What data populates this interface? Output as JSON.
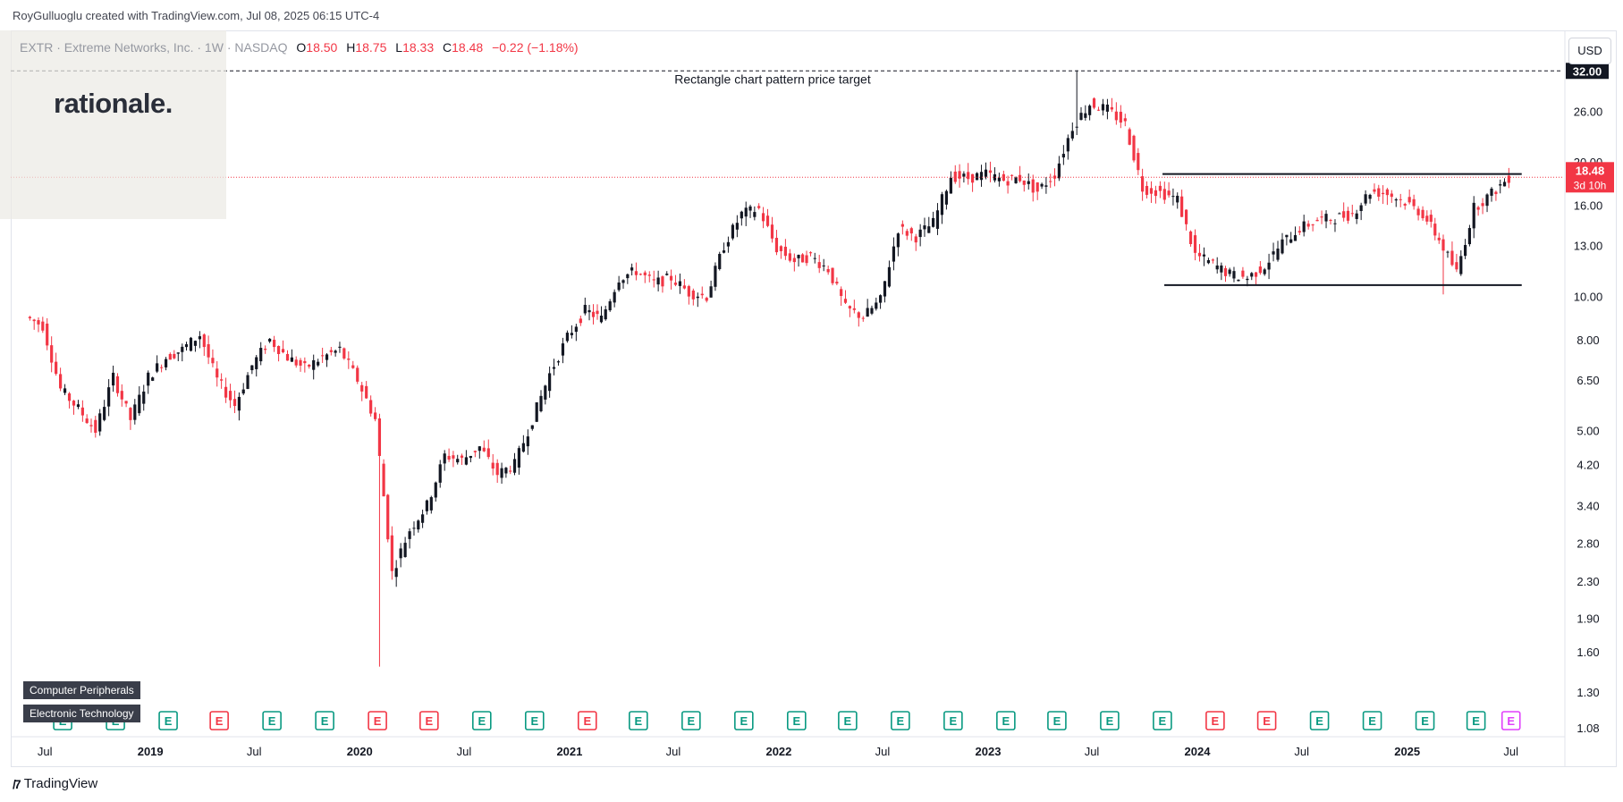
{
  "attribution": "RoyGulluoglu created with TradingView.com, Jul 08, 2025 06:15 UTC-4",
  "legend": {
    "symbol": "EXTR · Extreme Networks, Inc. · 1W · NASDAQ",
    "open_label": "O",
    "open": "18.50",
    "high_label": "H",
    "high": "18.75",
    "low_label": "L",
    "low": "18.33",
    "close_label": "C",
    "close": "18.48",
    "change": "−0.22 (−1.18%)"
  },
  "logo": "rationale.",
  "currency": "USD",
  "footer_logo": "TradingView",
  "tags": [
    "Computer Peripherals",
    "Electronic Technology"
  ],
  "colors": {
    "up": "#089981",
    "down": "#f23645",
    "candle_up": "#131722",
    "candle_down": "#f23645",
    "axis_text": "#131722",
    "grid": "#f0f3fa"
  },
  "chart_data": {
    "type": "candlestick",
    "scale": "log",
    "ylim": [
      1.08,
      38
    ],
    "y_ticks": [
      "1.08",
      "1.30",
      "1.60",
      "1.90",
      "2.30",
      "2.80",
      "3.40",
      "4.20",
      "5.00",
      "6.50",
      "8.00",
      "10.00",
      "13.00",
      "16.00",
      "20.00",
      "26.00"
    ],
    "x_ticks": [
      "Jul",
      "2019",
      "Jul",
      "2020",
      "Jul",
      "2021",
      "Jul",
      "2022",
      "Jul",
      "2023",
      "Jul",
      "2024",
      "Jul",
      "2025",
      "Jul"
    ],
    "x_tick_dates": [
      "2018-07",
      "2019-01",
      "2019-07",
      "2020-01",
      "2020-07",
      "2021-01",
      "2021-07",
      "2022-01",
      "2022-07",
      "2023-01",
      "2023-07",
      "2024-01",
      "2024-07",
      "2025-01",
      "2025-07"
    ],
    "series_close": [
      {
        "date": "2018-06",
        "close": 9.0
      },
      {
        "date": "2018-07",
        "close": 8.6
      },
      {
        "date": "2018-08",
        "close": 6.2
      },
      {
        "date": "2018-09",
        "close": 5.6
      },
      {
        "date": "2018-10",
        "close": 5.0
      },
      {
        "date": "2018-11",
        "close": 6.6
      },
      {
        "date": "2018-12",
        "close": 5.3
      },
      {
        "date": "2019-01",
        "close": 6.6
      },
      {
        "date": "2019-02",
        "close": 7.3
      },
      {
        "date": "2019-03",
        "close": 7.6
      },
      {
        "date": "2019-04",
        "close": 8.2
      },
      {
        "date": "2019-05",
        "close": 6.5
      },
      {
        "date": "2019-06",
        "close": 5.7
      },
      {
        "date": "2019-07",
        "close": 7.0
      },
      {
        "date": "2019-08",
        "close": 8.0
      },
      {
        "date": "2019-09",
        "close": 7.3
      },
      {
        "date": "2019-10",
        "close": 6.9
      },
      {
        "date": "2019-11",
        "close": 7.3
      },
      {
        "date": "2019-12",
        "close": 7.6
      },
      {
        "date": "2020-01",
        "close": 6.5
      },
      {
        "date": "2020-02",
        "close": 5.3
      },
      {
        "date": "2020-03",
        "close": 2.4
      },
      {
        "date": "2020-04",
        "close": 3.0
      },
      {
        "date": "2020-05",
        "close": 3.4
      },
      {
        "date": "2020-06",
        "close": 4.4
      },
      {
        "date": "2020-07",
        "close": 4.3
      },
      {
        "date": "2020-08",
        "close": 4.6
      },
      {
        "date": "2020-09",
        "close": 4.0
      },
      {
        "date": "2020-10",
        "close": 4.2
      },
      {
        "date": "2020-11",
        "close": 5.3
      },
      {
        "date": "2020-12",
        "close": 6.7
      },
      {
        "date": "2021-01",
        "close": 8.1
      },
      {
        "date": "2021-02",
        "close": 9.3
      },
      {
        "date": "2021-03",
        "close": 8.9
      },
      {
        "date": "2021-04",
        "close": 11.0
      },
      {
        "date": "2021-05",
        "close": 11.4
      },
      {
        "date": "2021-06",
        "close": 10.7
      },
      {
        "date": "2021-07",
        "close": 11.0
      },
      {
        "date": "2021-08",
        "close": 10.2
      },
      {
        "date": "2021-09",
        "close": 10.0
      },
      {
        "date": "2021-10",
        "close": 13.0
      },
      {
        "date": "2021-11",
        "close": 15.3
      },
      {
        "date": "2021-12",
        "close": 15.7
      },
      {
        "date": "2022-01",
        "close": 12.8
      },
      {
        "date": "2022-02",
        "close": 12.0
      },
      {
        "date": "2022-03",
        "close": 12.3
      },
      {
        "date": "2022-04",
        "close": 11.5
      },
      {
        "date": "2022-05",
        "close": 9.4
      },
      {
        "date": "2022-06",
        "close": 9.0
      },
      {
        "date": "2022-07",
        "close": 9.8
      },
      {
        "date": "2022-08",
        "close": 14.2
      },
      {
        "date": "2022-09",
        "close": 13.6
      },
      {
        "date": "2022-10",
        "close": 14.6
      },
      {
        "date": "2022-11",
        "close": 18.6
      },
      {
        "date": "2022-12",
        "close": 18.4
      },
      {
        "date": "2023-01",
        "close": 18.8
      },
      {
        "date": "2023-02",
        "close": 18.2
      },
      {
        "date": "2023-03",
        "close": 18.4
      },
      {
        "date": "2023-04",
        "close": 17.2
      },
      {
        "date": "2023-05",
        "close": 18.8
      },
      {
        "date": "2023-06",
        "close": 24.0
      },
      {
        "date": "2023-07",
        "close": 27.0
      },
      {
        "date": "2023-08",
        "close": 26.2
      },
      {
        "date": "2023-09",
        "close": 24.3
      },
      {
        "date": "2023-10",
        "close": 17.5
      },
      {
        "date": "2023-11",
        "close": 17.1
      },
      {
        "date": "2023-12",
        "close": 16.5
      },
      {
        "date": "2024-01",
        "close": 12.4
      },
      {
        "date": "2024-02",
        "close": 11.8
      },
      {
        "date": "2024-03",
        "close": 11.2
      },
      {
        "date": "2024-04",
        "close": 11.0
      },
      {
        "date": "2024-05",
        "close": 11.7
      },
      {
        "date": "2024-06",
        "close": 13.2
      },
      {
        "date": "2024-07",
        "close": 14.2
      },
      {
        "date": "2024-08",
        "close": 14.8
      },
      {
        "date": "2024-09",
        "close": 15.0
      },
      {
        "date": "2024-10",
        "close": 15.3
      },
      {
        "date": "2024-11",
        "close": 17.2
      },
      {
        "date": "2024-12",
        "close": 17.0
      },
      {
        "date": "2025-01",
        "close": 16.3
      },
      {
        "date": "2025-02",
        "close": 15.3
      },
      {
        "date": "2025-03",
        "close": 13.4
      },
      {
        "date": "2025-04",
        "close": 11.3
      },
      {
        "date": "2025-05",
        "close": 15.8
      },
      {
        "date": "2025-06",
        "close": 17.0
      },
      {
        "date": "2025-07",
        "close": 18.48
      }
    ],
    "notable_extremes": [
      {
        "date": "2020-03",
        "low": 1.48
      },
      {
        "date": "2023-07",
        "high": 32.1
      },
      {
        "date": "2025-04",
        "low": 10.1
      }
    ],
    "annotations": {
      "target_line": {
        "value": 32.0,
        "label": "Rectangle chart pattern price target",
        "style": "dashed"
      },
      "rectangle_top": {
        "value": 18.8,
        "start": "2023-10",
        "end": "2025-07"
      },
      "rectangle_bottom": {
        "value": 10.6,
        "start": "2023-10",
        "end": "2025-07"
      },
      "target_price_label": "32.00",
      "last_price_label": "18.48",
      "countdown_label": "3d 10h"
    },
    "earnings": [
      {
        "date": "2018-08",
        "type": "up"
      },
      {
        "date": "2018-11",
        "type": "up"
      },
      {
        "date": "2019-02",
        "type": "up"
      },
      {
        "date": "2019-05",
        "type": "down"
      },
      {
        "date": "2019-08",
        "type": "up"
      },
      {
        "date": "2019-11",
        "type": "up"
      },
      {
        "date": "2020-02",
        "type": "down"
      },
      {
        "date": "2020-05",
        "type": "down"
      },
      {
        "date": "2020-08",
        "type": "up"
      },
      {
        "date": "2020-11",
        "type": "up"
      },
      {
        "date": "2021-02",
        "type": "down"
      },
      {
        "date": "2021-05",
        "type": "up"
      },
      {
        "date": "2021-08",
        "type": "up"
      },
      {
        "date": "2021-11",
        "type": "up"
      },
      {
        "date": "2022-02",
        "type": "up"
      },
      {
        "date": "2022-05",
        "type": "up"
      },
      {
        "date": "2022-08",
        "type": "up"
      },
      {
        "date": "2022-11",
        "type": "up"
      },
      {
        "date": "2023-02",
        "type": "up"
      },
      {
        "date": "2023-05",
        "type": "up"
      },
      {
        "date": "2023-08",
        "type": "up"
      },
      {
        "date": "2023-11",
        "type": "up"
      },
      {
        "date": "2024-02",
        "type": "down"
      },
      {
        "date": "2024-05",
        "type": "down"
      },
      {
        "date": "2024-08",
        "type": "up"
      },
      {
        "date": "2024-11",
        "type": "up"
      },
      {
        "date": "2025-02",
        "type": "up"
      },
      {
        "date": "2025-05",
        "type": "up"
      },
      {
        "date": "2025-07",
        "type": "upcoming"
      }
    ],
    "earnings_glyph": "E"
  }
}
